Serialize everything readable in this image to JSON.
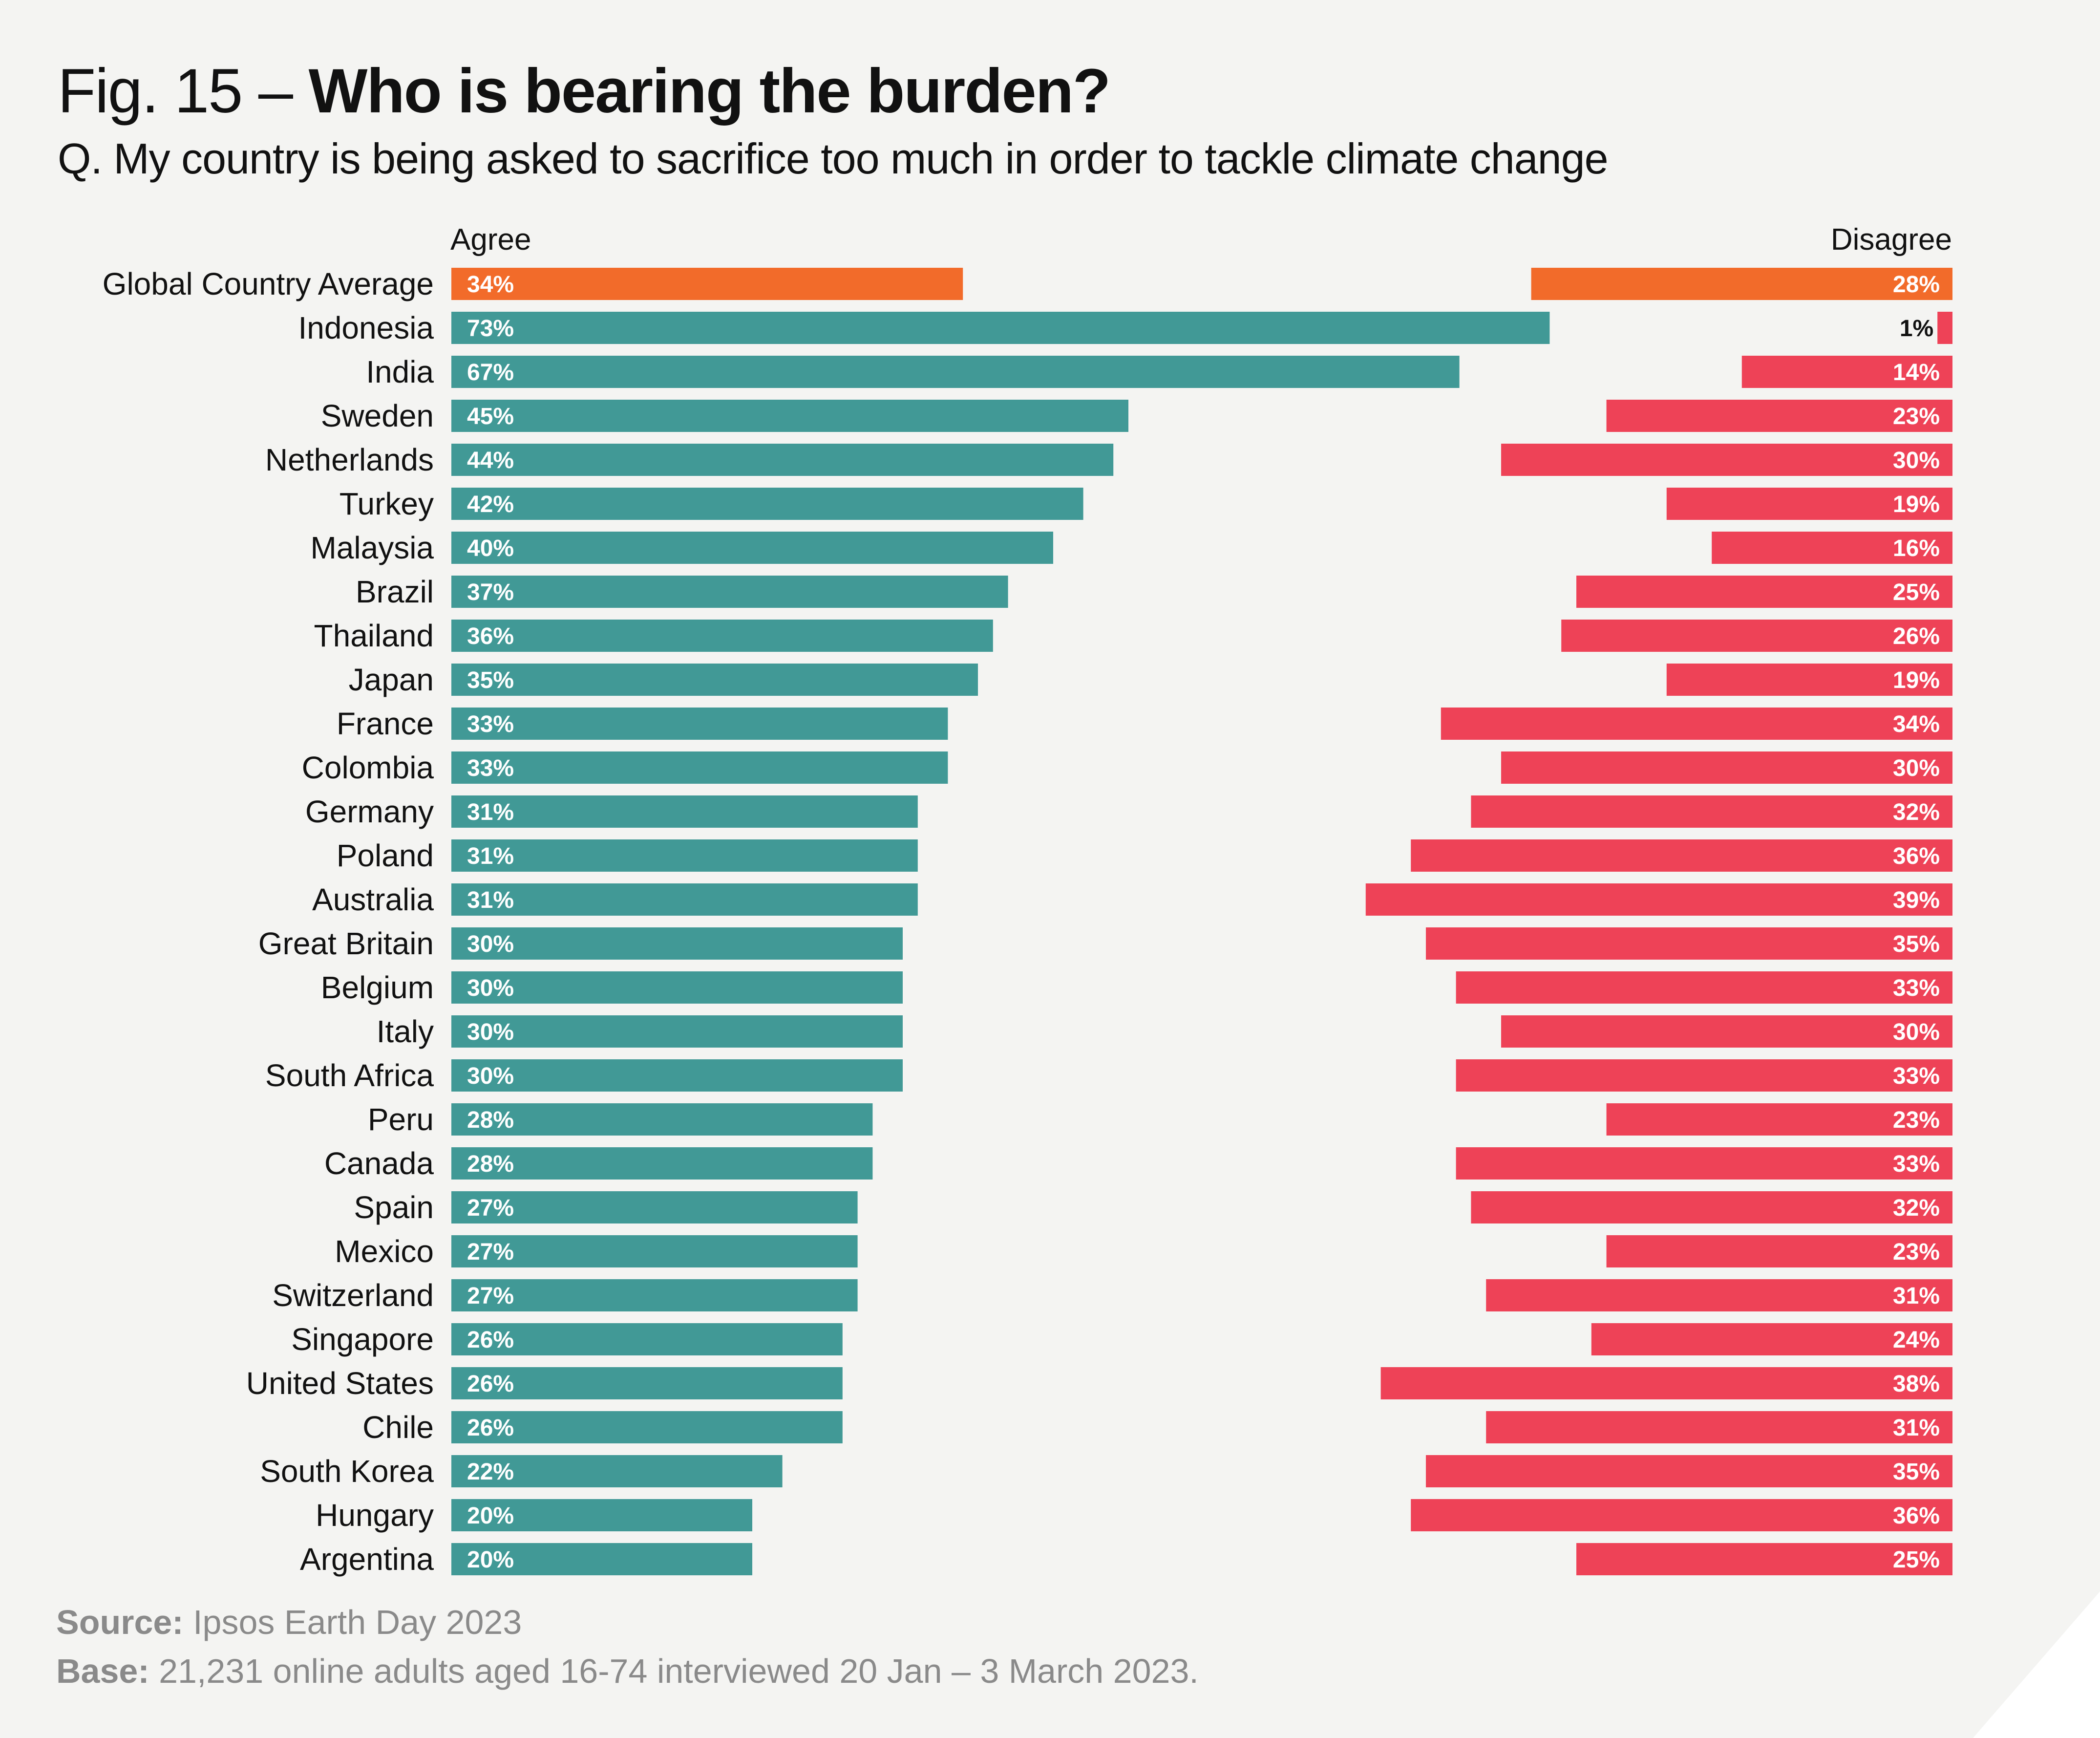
{
  "header": {
    "fig_label": "Fig. 15 – ",
    "title": "Who is bearing the burden?",
    "subtitle": "Q. My country is being asked to sacrifice too much in order to tackle climate change"
  },
  "footer": {
    "source_label": "Source:",
    "source_text": "Ipsos Earth Day 2023",
    "base_label": "Base:",
    "base_text": "21,231 online adults aged 16-74 interviewed 20 Jan – 3 March 2023."
  },
  "colors": {
    "agree": "#419996",
    "disagree": "#ee4257",
    "highlight": "#f26b2a",
    "label_text": "#ffffff"
  },
  "chart_data": {
    "type": "bar",
    "orientation": "horizontal",
    "title": "Who is bearing the burden?",
    "agree_label": "Agree",
    "disagree_label": "Disagree",
    "unit": "%",
    "xlim": [
      0,
      100
    ],
    "highlight_category": "Global Country Average",
    "categories": [
      "Global Country Average",
      "Indonesia",
      "India",
      "Sweden",
      "Netherlands",
      "Turkey",
      "Malaysia",
      "Brazil",
      "Thailand",
      "Japan",
      "France",
      "Colombia",
      "Germany",
      "Poland",
      "Australia",
      "Great Britain",
      "Belgium",
      "Italy",
      "South Africa",
      "Peru",
      "Canada",
      "Spain",
      "Mexico",
      "Switzerland",
      "Singapore",
      "United States",
      "Chile",
      "South Korea",
      "Hungary",
      "Argentina"
    ],
    "series": [
      {
        "name": "Agree",
        "values": [
          34,
          73,
          67,
          45,
          44,
          42,
          40,
          37,
          36,
          35,
          33,
          33,
          31,
          31,
          31,
          30,
          30,
          30,
          30,
          28,
          28,
          27,
          27,
          27,
          26,
          26,
          26,
          22,
          20,
          20
        ]
      },
      {
        "name": "Disagree",
        "values": [
          28,
          1,
          14,
          23,
          30,
          19,
          16,
          25,
          26,
          19,
          34,
          30,
          32,
          36,
          39,
          35,
          33,
          30,
          33,
          23,
          33,
          32,
          23,
          31,
          24,
          38,
          31,
          35,
          36,
          25
        ]
      }
    ]
  }
}
